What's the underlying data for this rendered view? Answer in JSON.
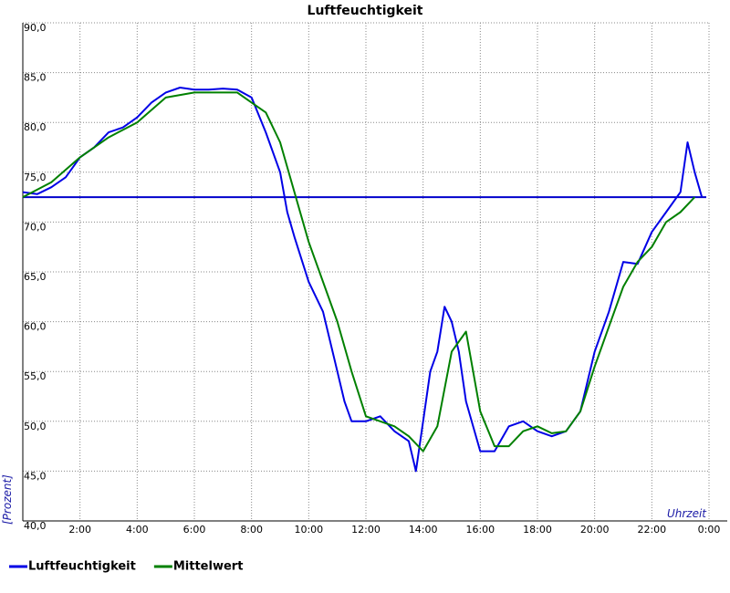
{
  "chart_data": {
    "type": "line",
    "title": "Luftfeuchtigkeit",
    "x_label": "Uhrzeit",
    "y_label": "[Prozent]",
    "xlim": [
      0,
      24
    ],
    "ylim": [
      40,
      90
    ],
    "xticks": [
      {
        "value": 2,
        "label": "2:00"
      },
      {
        "value": 4,
        "label": "4:00"
      },
      {
        "value": 6,
        "label": "6:00"
      },
      {
        "value": 8,
        "label": "8:00"
      },
      {
        "value": 10,
        "label": "10:00"
      },
      {
        "value": 12,
        "label": "12:00"
      },
      {
        "value": 14,
        "label": "14:00"
      },
      {
        "value": 16,
        "label": "16:00"
      },
      {
        "value": 18,
        "label": "18:00"
      },
      {
        "value": 20,
        "label": "20:00"
      },
      {
        "value": 22,
        "label": "22:00"
      },
      {
        "value": 24,
        "label": "0:00"
      }
    ],
    "yticks": [
      {
        "value": 40,
        "label": "40,0"
      },
      {
        "value": 45,
        "label": "45,0"
      },
      {
        "value": 50,
        "label": "50,0"
      },
      {
        "value": 55,
        "label": "55,0"
      },
      {
        "value": 60,
        "label": "60,0"
      },
      {
        "value": 65,
        "label": "65,0"
      },
      {
        "value": 70,
        "label": "70,0"
      },
      {
        "value": 75,
        "label": "75,0"
      },
      {
        "value": 80,
        "label": "80,0"
      },
      {
        "value": 85,
        "label": "85,0"
      },
      {
        "value": 90,
        "label": "90,0"
      }
    ],
    "grid": true,
    "reference_line": 72.5,
    "reference_color": "#0000cc",
    "series": [
      {
        "name": "Luftfeuchtigkeit",
        "color": "#0000e6",
        "x": [
          0,
          0.5,
          1,
          1.5,
          2,
          2.5,
          3,
          3.5,
          4,
          4.5,
          5,
          5.5,
          6,
          6.5,
          7,
          7.5,
          8,
          8.5,
          9,
          9.25,
          9.5,
          10,
          10.5,
          11,
          11.25,
          11.5,
          12,
          12.5,
          13,
          13.5,
          13.75,
          14,
          14.25,
          14.5,
          14.75,
          15,
          15.25,
          15.5,
          16,
          16.5,
          17,
          17.5,
          18,
          18.5,
          19,
          19.5,
          20,
          20.5,
          21,
          21.5,
          22,
          22.5,
          23,
          23.25,
          23.5,
          23.75
        ],
        "values": [
          73,
          72.8,
          73.5,
          74.5,
          76.5,
          77.5,
          79,
          79.5,
          80.5,
          82,
          83,
          83.5,
          83.3,
          83.3,
          83.4,
          83.3,
          82.5,
          79,
          75,
          71,
          68.5,
          64,
          61,
          55,
          52,
          50,
          50,
          50.5,
          49,
          48,
          45,
          50,
          55,
          57,
          61.5,
          60,
          57,
          52,
          47,
          47,
          49.5,
          50,
          49,
          48.5,
          49,
          51,
          57,
          61,
          66,
          65.8,
          69,
          71,
          73,
          78,
          75,
          72.5
        ]
      },
      {
        "name": "Mittelwert",
        "color": "#008000",
        "x": [
          0,
          1,
          2,
          3,
          4,
          5,
          6,
          7,
          7.5,
          8,
          8.5,
          9,
          10,
          11,
          11.5,
          12,
          13,
          13.5,
          14,
          14.5,
          15,
          15.5,
          16,
          16.5,
          17,
          17.5,
          18,
          18.5,
          19,
          19.5,
          20,
          20.5,
          21,
          21.5,
          22,
          22.5,
          23,
          23.5
        ],
        "values": [
          72.5,
          74,
          76.5,
          78.5,
          80,
          82.5,
          83,
          83,
          83,
          82,
          81,
          78,
          68,
          60,
          55,
          50.5,
          49.5,
          48.5,
          47,
          49.5,
          57,
          59,
          51,
          47.5,
          47.5,
          49,
          49.5,
          48.8,
          49,
          51,
          55.5,
          59.5,
          63.5,
          66,
          67.5,
          70,
          71,
          72.5
        ]
      }
    ]
  }
}
